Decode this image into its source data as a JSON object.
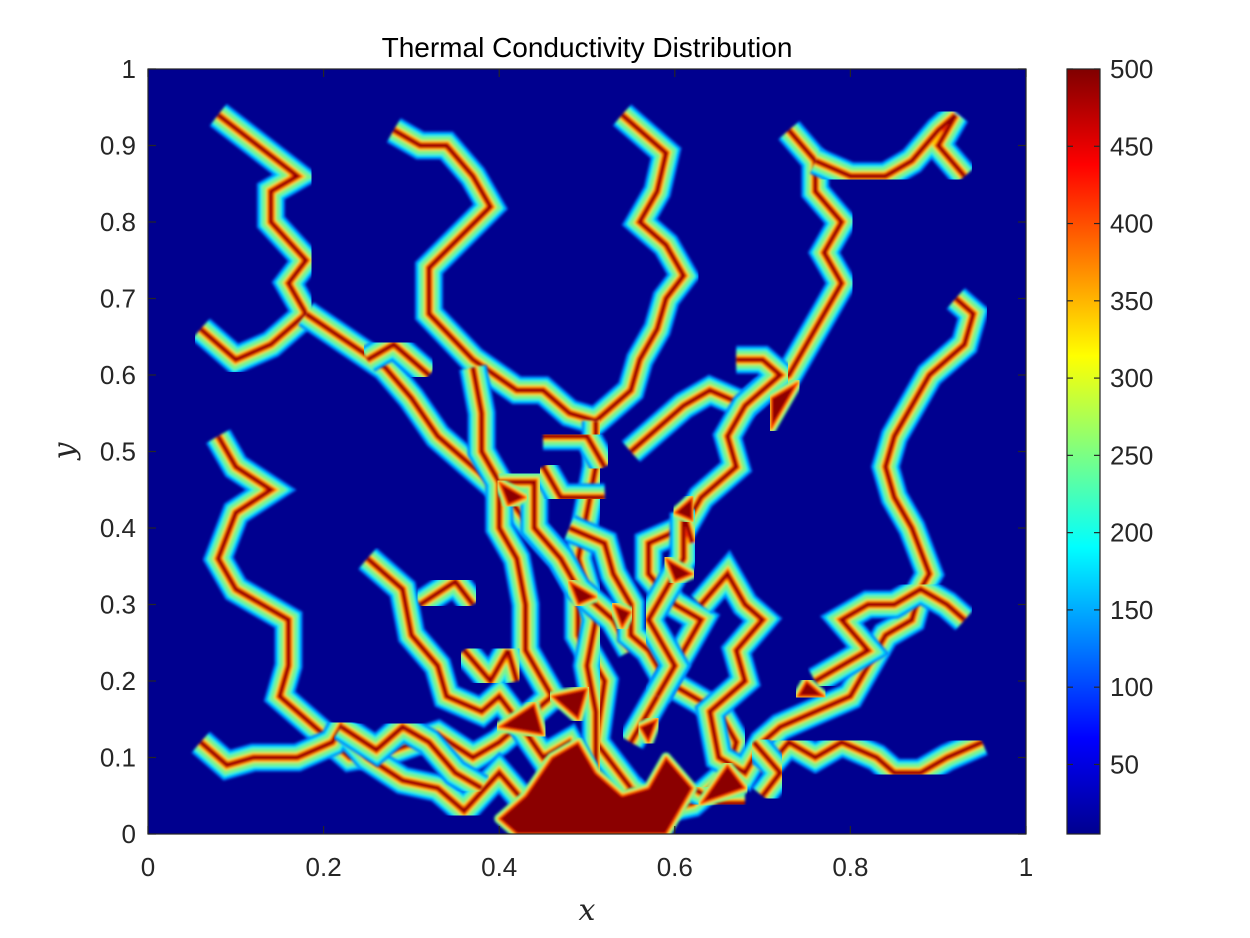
{
  "chart_data": {
    "type": "heatmap",
    "title": "Thermal Conductivity Distribution",
    "xlabel": "x",
    "ylabel": "y",
    "xlim": [
      0,
      1
    ],
    "ylim": [
      0,
      1
    ],
    "xticks": [
      "0",
      "0.2",
      "0.4",
      "0.6",
      "0.8",
      "1"
    ],
    "yticks": [
      "0",
      "0.1",
      "0.2",
      "0.3",
      "0.4",
      "0.5",
      "0.6",
      "0.7",
      "0.8",
      "0.9",
      "1"
    ],
    "colorbar": {
      "colormap": "jet",
      "range": [
        5,
        500
      ],
      "ticks": [
        "50",
        "100",
        "150",
        "200",
        "250",
        "300",
        "350",
        "400",
        "450",
        "500"
      ]
    },
    "background_value": 5,
    "channel_value": 500,
    "channels": [
      [
        [
          0.08,
          0.94
        ],
        [
          0.17,
          0.86
        ],
        [
          0.14,
          0.84
        ],
        [
          0.14,
          0.8
        ],
        [
          0.18,
          0.75
        ],
        [
          0.16,
          0.72
        ],
        [
          0.18,
          0.68
        ],
        [
          0.14,
          0.64
        ],
        [
          0.1,
          0.62
        ],
        [
          0.06,
          0.66
        ]
      ],
      [
        [
          0.18,
          0.68
        ],
        [
          0.27,
          0.61
        ],
        [
          0.3,
          0.57
        ],
        [
          0.33,
          0.52
        ],
        [
          0.39,
          0.46
        ],
        [
          0.41,
          0.44
        ],
        [
          0.43,
          0.41
        ],
        [
          0.47,
          0.36
        ],
        [
          0.49,
          0.32
        ],
        [
          0.49,
          0.26
        ],
        [
          0.52,
          0.2
        ],
        [
          0.51,
          0.12
        ],
        [
          0.55,
          0.06
        ],
        [
          0.53,
          0.02
        ]
      ],
      [
        [
          0.25,
          0.62
        ],
        [
          0.28,
          0.64
        ],
        [
          0.32,
          0.6
        ]
      ],
      [
        [
          0.28,
          0.92
        ],
        [
          0.31,
          0.9
        ],
        [
          0.34,
          0.9
        ],
        [
          0.37,
          0.86
        ],
        [
          0.39,
          0.82
        ],
        [
          0.32,
          0.74
        ],
        [
          0.32,
          0.68
        ],
        [
          0.37,
          0.62
        ],
        [
          0.42,
          0.58
        ],
        [
          0.45,
          0.58
        ],
        [
          0.48,
          0.55
        ],
        [
          0.51,
          0.54
        ],
        [
          0.55,
          0.58
        ],
        [
          0.56,
          0.62
        ],
        [
          0.58,
          0.66
        ],
        [
          0.59,
          0.7
        ],
        [
          0.61,
          0.73
        ],
        [
          0.59,
          0.77
        ],
        [
          0.56,
          0.8
        ],
        [
          0.58,
          0.84
        ],
        [
          0.59,
          0.89
        ],
        [
          0.54,
          0.94
        ]
      ],
      [
        [
          0.51,
          0.54
        ],
        [
          0.51,
          0.48
        ],
        [
          0.5,
          0.42
        ],
        [
          0.49,
          0.36
        ],
        [
          0.51,
          0.28
        ],
        [
          0.5,
          0.22
        ],
        [
          0.51,
          0.16
        ],
        [
          0.51,
          0.08
        ],
        [
          0.47,
          0.04
        ],
        [
          0.42,
          0.03
        ]
      ],
      [
        [
          0.37,
          0.61
        ],
        [
          0.38,
          0.55
        ],
        [
          0.38,
          0.5
        ],
        [
          0.4,
          0.46
        ],
        [
          0.4,
          0.4
        ],
        [
          0.42,
          0.36
        ],
        [
          0.43,
          0.3
        ],
        [
          0.43,
          0.24
        ],
        [
          0.46,
          0.18
        ],
        [
          0.42,
          0.14
        ],
        [
          0.4,
          0.12
        ],
        [
          0.37,
          0.1
        ],
        [
          0.33,
          0.13
        ],
        [
          0.28,
          0.11
        ],
        [
          0.23,
          0.1
        ],
        [
          0.2,
          0.13
        ],
        [
          0.15,
          0.18
        ],
        [
          0.16,
          0.22
        ],
        [
          0.16,
          0.28
        ],
        [
          0.13,
          0.3
        ],
        [
          0.1,
          0.32
        ],
        [
          0.08,
          0.36
        ],
        [
          0.1,
          0.42
        ],
        [
          0.14,
          0.45
        ],
        [
          0.1,
          0.48
        ],
        [
          0.08,
          0.52
        ]
      ],
      [
        [
          0.06,
          0.12
        ],
        [
          0.09,
          0.09
        ],
        [
          0.12,
          0.1
        ],
        [
          0.17,
          0.1
        ],
        [
          0.21,
          0.12
        ],
        [
          0.22,
          0.14
        ],
        [
          0.25,
          0.1
        ],
        [
          0.29,
          0.07
        ],
        [
          0.33,
          0.06
        ],
        [
          0.36,
          0.03
        ],
        [
          0.4,
          0.08
        ],
        [
          0.43,
          0.04
        ]
      ],
      [
        [
          0.22,
          0.14
        ],
        [
          0.26,
          0.11
        ],
        [
          0.29,
          0.14
        ],
        [
          0.32,
          0.12
        ],
        [
          0.35,
          0.08
        ],
        [
          0.38,
          0.06
        ]
      ],
      [
        [
          0.25,
          0.36
        ],
        [
          0.29,
          0.32
        ],
        [
          0.3,
          0.26
        ],
        [
          0.33,
          0.22
        ],
        [
          0.34,
          0.18
        ],
        [
          0.38,
          0.16
        ],
        [
          0.4,
          0.18
        ],
        [
          0.42,
          0.15
        ],
        [
          0.45,
          0.1
        ],
        [
          0.48,
          0.12
        ],
        [
          0.5,
          0.08
        ]
      ],
      [
        [
          0.31,
          0.3
        ],
        [
          0.35,
          0.33
        ],
        [
          0.37,
          0.3
        ]
      ],
      [
        [
          0.4,
          0.46
        ],
        [
          0.44,
          0.46
        ],
        [
          0.44,
          0.4
        ],
        [
          0.47,
          0.36
        ],
        [
          0.49,
          0.32
        ],
        [
          0.53,
          0.28
        ],
        [
          0.55,
          0.24
        ]
      ],
      [
        [
          0.36,
          0.24
        ],
        [
          0.39,
          0.2
        ],
        [
          0.41,
          0.24
        ],
        [
          0.42,
          0.2
        ]
      ],
      [
        [
          0.48,
          0.4
        ],
        [
          0.52,
          0.38
        ],
        [
          0.53,
          0.34
        ],
        [
          0.55,
          0.3
        ],
        [
          0.55,
          0.26
        ],
        [
          0.57,
          0.24
        ],
        [
          0.59,
          0.2
        ],
        [
          0.62,
          0.18
        ],
        [
          0.65,
          0.16
        ],
        [
          0.67,
          0.12
        ],
        [
          0.66,
          0.08
        ],
        [
          0.62,
          0.04
        ],
        [
          0.58,
          0.03
        ],
        [
          0.55,
          0.06
        ]
      ],
      [
        [
          0.55,
          0.5
        ],
        [
          0.59,
          0.54
        ],
        [
          0.61,
          0.56
        ],
        [
          0.64,
          0.58
        ],
        [
          0.68,
          0.56
        ],
        [
          0.7,
          0.58
        ],
        [
          0.73,
          0.6
        ],
        [
          0.75,
          0.64
        ],
        [
          0.77,
          0.68
        ],
        [
          0.79,
          0.72
        ],
        [
          0.77,
          0.76
        ],
        [
          0.79,
          0.8
        ],
        [
          0.76,
          0.84
        ],
        [
          0.76,
          0.88
        ],
        [
          0.73,
          0.92
        ]
      ],
      [
        [
          0.76,
          0.88
        ],
        [
          0.8,
          0.86
        ],
        [
          0.84,
          0.86
        ],
        [
          0.87,
          0.88
        ],
        [
          0.9,
          0.92
        ],
        [
          0.92,
          0.94
        ],
        [
          0.9,
          0.9
        ],
        [
          0.93,
          0.86
        ]
      ],
      [
        [
          0.67,
          0.62
        ],
        [
          0.7,
          0.62
        ],
        [
          0.72,
          0.6
        ],
        [
          0.68,
          0.56
        ],
        [
          0.66,
          0.52
        ],
        [
          0.67,
          0.48
        ],
        [
          0.63,
          0.44
        ],
        [
          0.61,
          0.4
        ],
        [
          0.57,
          0.38
        ],
        [
          0.57,
          0.34
        ],
        [
          0.6,
          0.3
        ],
        [
          0.63,
          0.28
        ],
        [
          0.61,
          0.24
        ],
        [
          0.59,
          0.2
        ],
        [
          0.57,
          0.16
        ],
        [
          0.55,
          0.12
        ]
      ],
      [
        [
          0.63,
          0.3
        ],
        [
          0.66,
          0.34
        ],
        [
          0.68,
          0.3
        ],
        [
          0.7,
          0.28
        ],
        [
          0.67,
          0.24
        ],
        [
          0.68,
          0.2
        ],
        [
          0.64,
          0.16
        ],
        [
          0.65,
          0.1
        ],
        [
          0.68,
          0.08
        ],
        [
          0.7,
          0.12
        ],
        [
          0.72,
          0.14
        ],
        [
          0.76,
          0.16
        ],
        [
          0.8,
          0.18
        ],
        [
          0.82,
          0.22
        ],
        [
          0.84,
          0.26
        ],
        [
          0.87,
          0.28
        ],
        [
          0.88,
          0.32
        ],
        [
          0.89,
          0.34
        ],
        [
          0.87,
          0.4
        ],
        [
          0.85,
          0.44
        ],
        [
          0.84,
          0.48
        ],
        [
          0.85,
          0.52
        ],
        [
          0.87,
          0.56
        ],
        [
          0.89,
          0.6
        ],
        [
          0.93,
          0.64
        ],
        [
          0.94,
          0.68
        ],
        [
          0.92,
          0.7
        ]
      ],
      [
        [
          0.62,
          0.38
        ],
        [
          0.61,
          0.42
        ],
        [
          0.61,
          0.36
        ],
        [
          0.59,
          0.32
        ],
        [
          0.57,
          0.28
        ],
        [
          0.6,
          0.22
        ],
        [
          0.58,
          0.18
        ]
      ],
      [
        [
          0.7,
          0.08
        ],
        [
          0.73,
          0.12
        ],
        [
          0.76,
          0.1
        ],
        [
          0.79,
          0.12
        ],
        [
          0.83,
          0.1
        ],
        [
          0.85,
          0.08
        ],
        [
          0.88,
          0.08
        ],
        [
          0.91,
          0.1
        ],
        [
          0.95,
          0.12
        ]
      ],
      [
        [
          0.76,
          0.2
        ],
        [
          0.79,
          0.22
        ],
        [
          0.82,
          0.24
        ],
        [
          0.79,
          0.28
        ],
        [
          0.82,
          0.3
        ],
        [
          0.85,
          0.3
        ],
        [
          0.88,
          0.32
        ],
        [
          0.91,
          0.3
        ],
        [
          0.93,
          0.28
        ]
      ],
      [
        [
          0.69,
          0.12
        ],
        [
          0.72,
          0.08
        ],
        [
          0.7,
          0.05
        ]
      ],
      [
        [
          0.62,
          0.06
        ],
        [
          0.65,
          0.04
        ],
        [
          0.68,
          0.04
        ]
      ],
      [
        [
          0.45,
          0.48
        ],
        [
          0.47,
          0.44
        ],
        [
          0.52,
          0.44
        ]
      ],
      [
        [
          0.45,
          0.52
        ],
        [
          0.5,
          0.52
        ],
        [
          0.52,
          0.48
        ]
      ]
    ],
    "blobs": [
      [
        [
          0.4,
          0.02
        ],
        [
          0.43,
          0.05
        ],
        [
          0.46,
          0.1
        ],
        [
          0.49,
          0.12
        ],
        [
          0.51,
          0.08
        ],
        [
          0.54,
          0.05
        ],
        [
          0.57,
          0.06
        ],
        [
          0.59,
          0.1
        ],
        [
          0.62,
          0.06
        ],
        [
          0.59,
          0.0
        ],
        [
          0.42,
          0.0
        ]
      ],
      [
        [
          0.4,
          0.14
        ],
        [
          0.44,
          0.17
        ],
        [
          0.45,
          0.13
        ]
      ],
      [
        [
          0.46,
          0.18
        ],
        [
          0.5,
          0.19
        ],
        [
          0.49,
          0.15
        ]
      ],
      [
        [
          0.63,
          0.04
        ],
        [
          0.66,
          0.09
        ],
        [
          0.68,
          0.06
        ]
      ],
      [
        [
          0.71,
          0.57
        ],
        [
          0.74,
          0.59
        ],
        [
          0.71,
          0.53
        ]
      ],
      [
        [
          0.4,
          0.46
        ],
        [
          0.43,
          0.44
        ],
        [
          0.41,
          0.43
        ]
      ],
      [
        [
          0.6,
          0.42
        ],
        [
          0.62,
          0.44
        ],
        [
          0.62,
          0.41
        ]
      ],
      [
        [
          0.59,
          0.36
        ],
        [
          0.62,
          0.34
        ],
        [
          0.6,
          0.33
        ]
      ],
      [
        [
          0.48,
          0.33
        ],
        [
          0.51,
          0.31
        ],
        [
          0.49,
          0.3
        ]
      ],
      [
        [
          0.53,
          0.3
        ],
        [
          0.55,
          0.29
        ],
        [
          0.54,
          0.27
        ]
      ],
      [
        [
          0.75,
          0.2
        ],
        [
          0.77,
          0.18
        ],
        [
          0.74,
          0.18
        ]
      ],
      [
        [
          0.56,
          0.14
        ],
        [
          0.58,
          0.15
        ],
        [
          0.57,
          0.12
        ]
      ]
    ]
  }
}
